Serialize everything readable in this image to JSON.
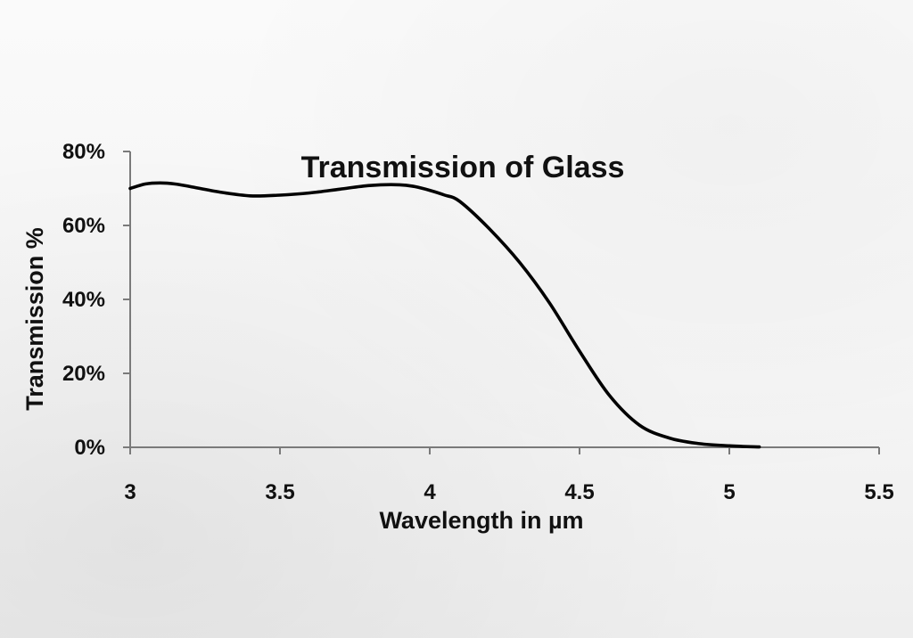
{
  "chart_data": {
    "type": "line",
    "title": "Transmission of Glass",
    "xlabel": "Wavelength in µm",
    "ylabel": "Transmission %",
    "xlim": [
      3,
      5.5
    ],
    "ylim": [
      0,
      80
    ],
    "x_ticks": [
      "3",
      "3.5",
      "4",
      "4.5",
      "5",
      "5.5"
    ],
    "x_tick_values": [
      3,
      3.5,
      4,
      4.5,
      5,
      5.5
    ],
    "y_ticks": [
      "0%",
      "20%",
      "40%",
      "60%",
      "80%"
    ],
    "y_tick_values": [
      0,
      20,
      40,
      60,
      80
    ],
    "grid": false,
    "series": [
      {
        "name": "Transmission of Glass",
        "x": [
          3.0,
          3.05,
          3.1,
          3.15,
          3.2,
          3.3,
          3.4,
          3.5,
          3.6,
          3.7,
          3.8,
          3.9,
          3.95,
          4.0,
          4.05,
          4.1,
          4.2,
          4.3,
          4.4,
          4.5,
          4.6,
          4.7,
          4.8,
          4.9,
          5.0,
          5.1
        ],
        "values": [
          70,
          71.2,
          71.5,
          71.2,
          70.5,
          69,
          68,
          68.2,
          68.8,
          69.8,
          70.8,
          71,
          70.5,
          69.5,
          68.2,
          66.5,
          59,
          50,
          39,
          26,
          14,
          6,
          2.5,
          1,
          0.4,
          0.1
        ]
      }
    ]
  },
  "colors": {
    "line": "#000000",
    "axis": "#7a7a7a",
    "text": "#111111"
  }
}
